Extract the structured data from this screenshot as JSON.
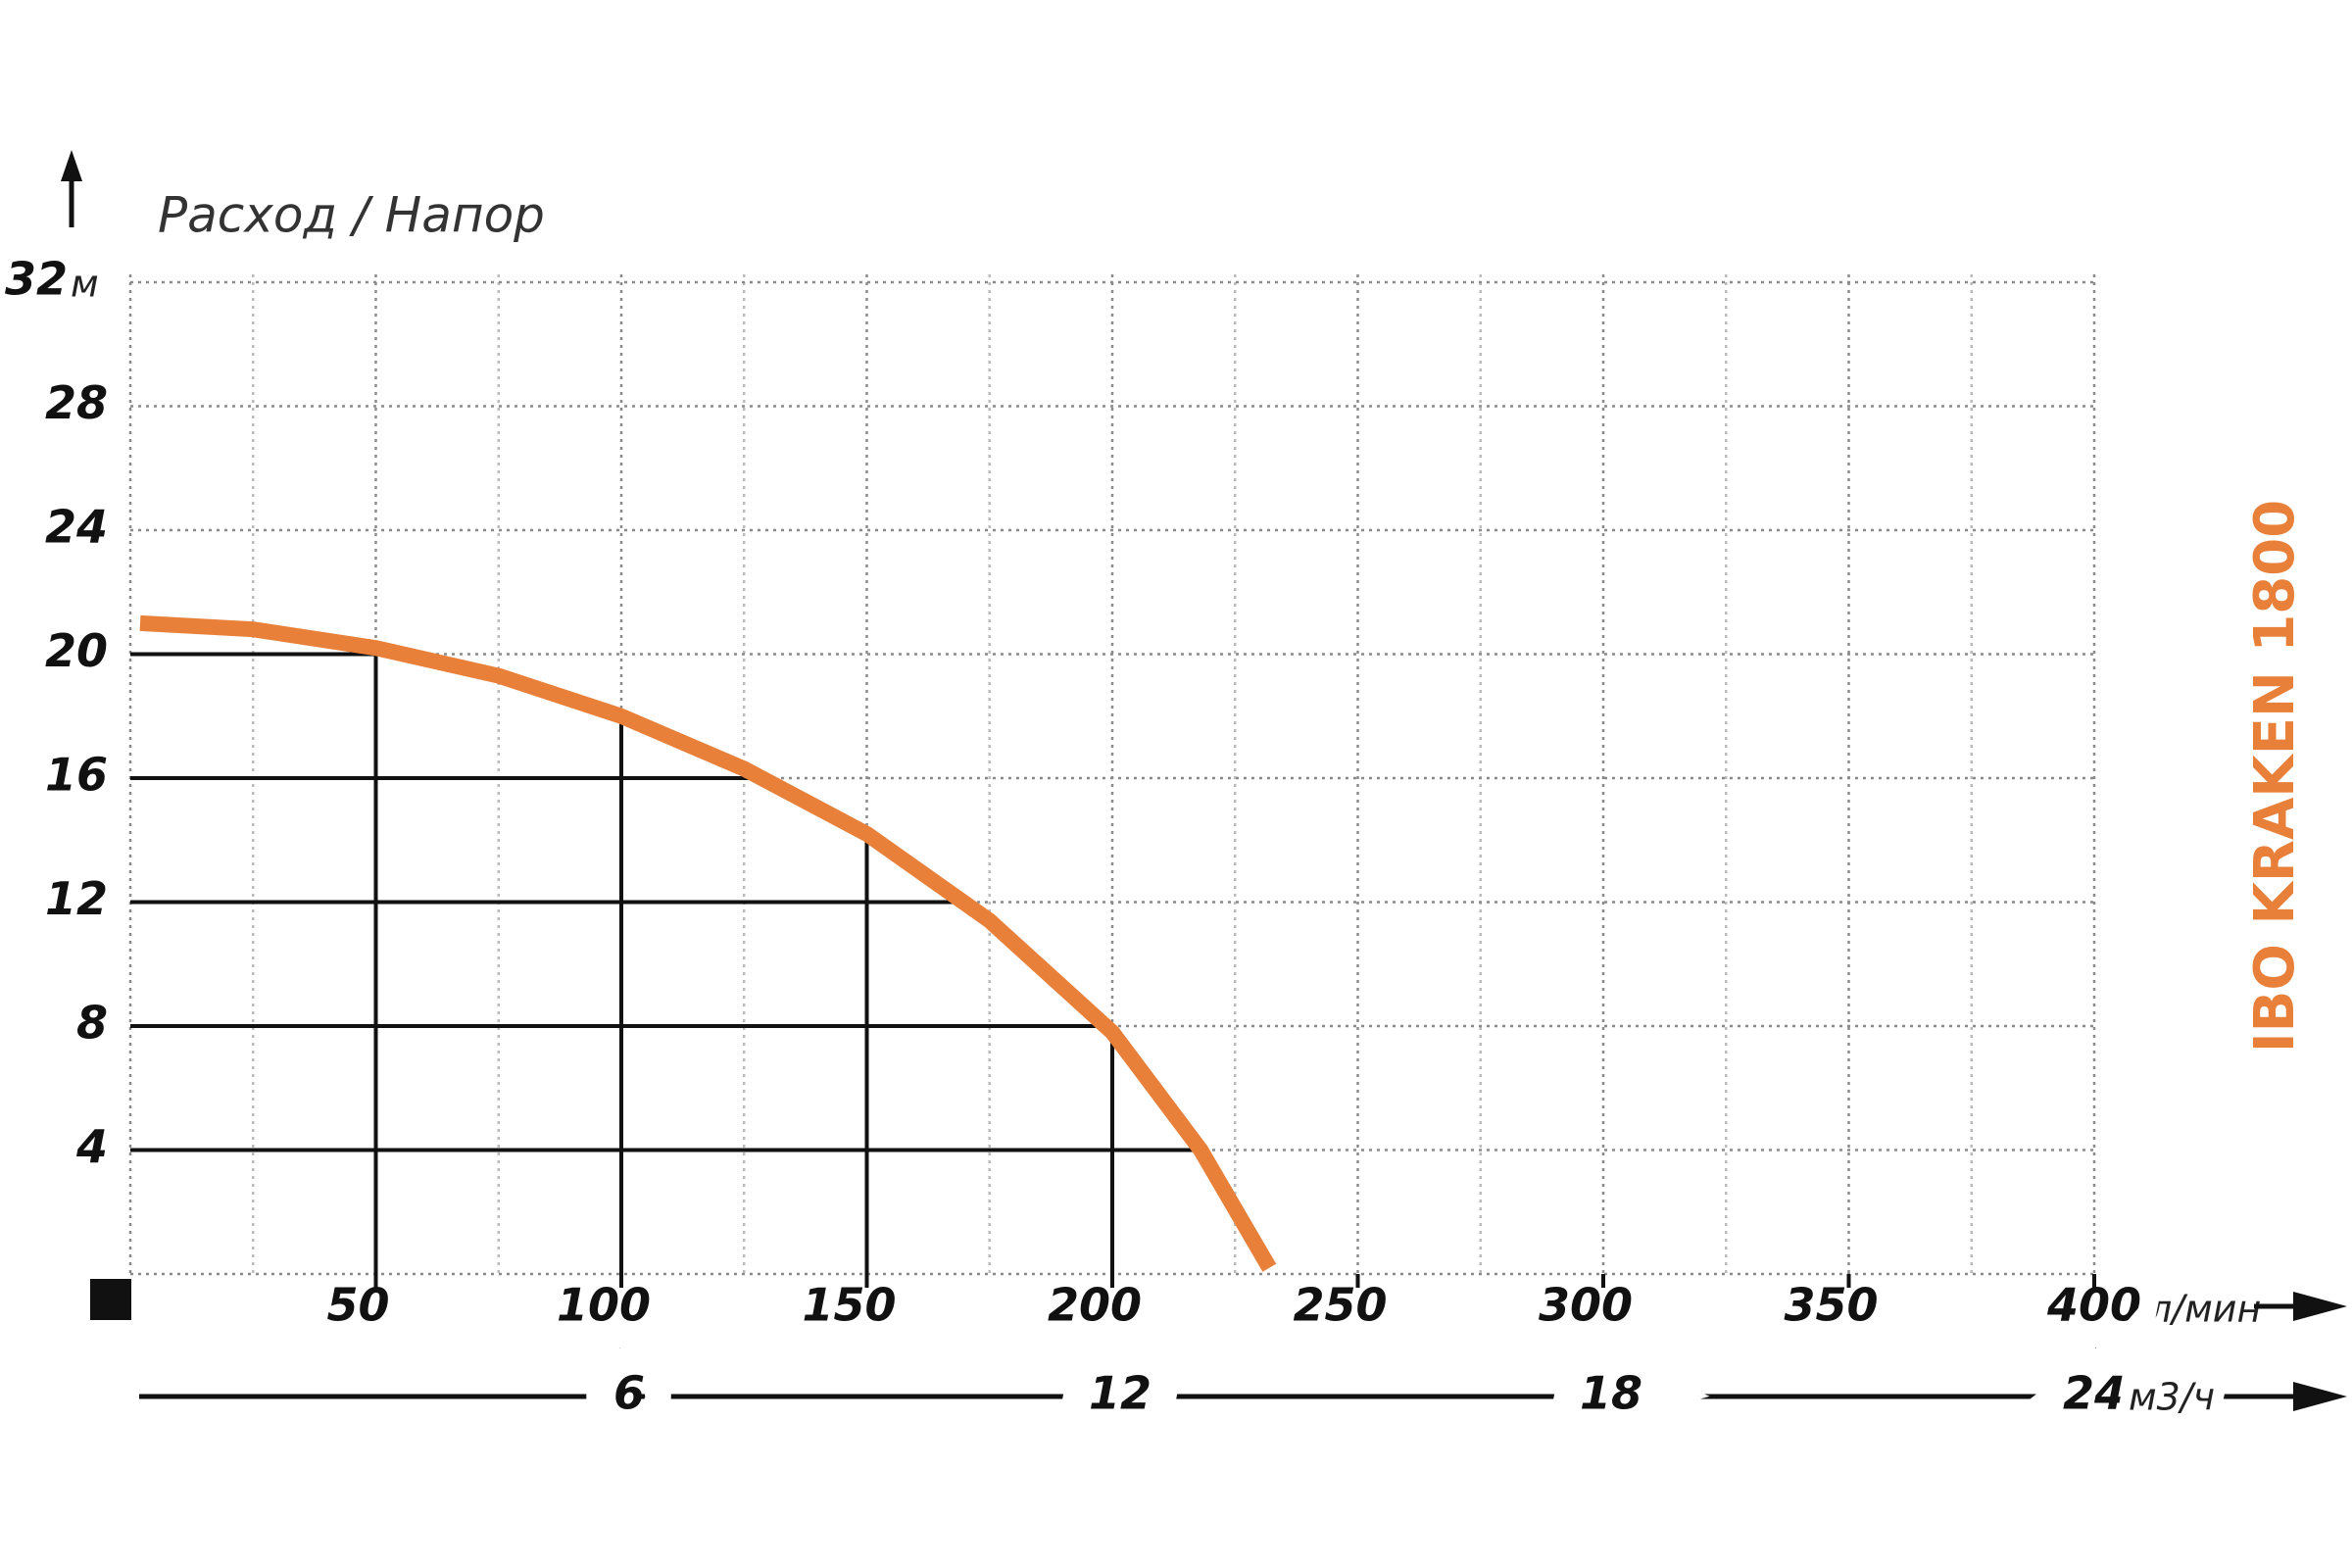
{
  "chart_data": {
    "type": "line",
    "title": "IBO KRAKEN 1800",
    "y_label": "Расход / Напор",
    "y_unit": "м",
    "x_unit": "л/мин",
    "x2_unit": "м3/ч",
    "x": [
      2,
      25,
      50,
      75,
      100,
      125,
      150,
      175,
      200,
      218,
      232
    ],
    "values": [
      21,
      20.8,
      20.2,
      19.3,
      18,
      16.3,
      14.2,
      11.4,
      7.8,
      4,
      0.2
    ],
    "color": "#e8803a",
    "xlim": [
      0,
      400
    ],
    "xticks": [
      50,
      100,
      150,
      200,
      250,
      300,
      350,
      400
    ],
    "x2lim": [
      0,
      24
    ],
    "x2ticks": [
      6,
      12,
      18,
      24
    ],
    "ylim": [
      0,
      32
    ],
    "yticks": [
      4,
      8,
      12,
      16,
      20,
      24,
      28,
      32
    ],
    "grid": true
  }
}
